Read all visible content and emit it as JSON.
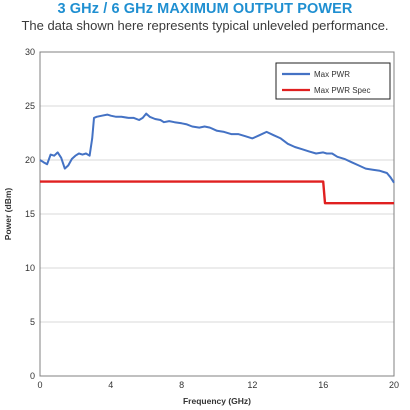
{
  "header": {
    "title": "3 GHz / 6 GHz MAXIMUM OUTPUT POWER",
    "subtitle": "The data shown here represents typical unleveled performance."
  },
  "chart_data": {
    "type": "line",
    "xlabel": "Frequency (GHz)",
    "ylabel": "Power (dBm)",
    "xlim": [
      0,
      20
    ],
    "ylim": [
      0,
      30
    ],
    "xticks": [
      0,
      4,
      8,
      12,
      16,
      20
    ],
    "yticks": [
      0,
      5,
      10,
      15,
      20,
      25,
      30
    ],
    "grid": "horizontal",
    "legend_position": "top-right",
    "series": [
      {
        "name": "Max PWR",
        "color": "#4472c4",
        "x": [
          0,
          0.2,
          0.4,
          0.6,
          0.8,
          1.0,
          1.2,
          1.4,
          1.6,
          1.8,
          2.0,
          2.2,
          2.4,
          2.6,
          2.8,
          2.95,
          3.05,
          3.2,
          3.5,
          3.8,
          4.0,
          4.3,
          4.6,
          5.0,
          5.3,
          5.6,
          5.8,
          6.0,
          6.2,
          6.5,
          6.8,
          7.0,
          7.3,
          7.6,
          8.0,
          8.3,
          8.6,
          9.0,
          9.3,
          9.6,
          10.0,
          10.4,
          10.8,
          11.2,
          11.6,
          12.0,
          12.4,
          12.8,
          13.2,
          13.6,
          14.0,
          14.4,
          14.8,
          15.2,
          15.6,
          16.0,
          16.2,
          16.5,
          16.8,
          17.2,
          17.6,
          18.0,
          18.4,
          18.8,
          19.2,
          19.6,
          19.8,
          20.0
        ],
        "values": [
          20.0,
          19.8,
          19.6,
          20.5,
          20.4,
          20.7,
          20.2,
          19.2,
          19.5,
          20.1,
          20.4,
          20.6,
          20.5,
          20.6,
          20.4,
          22.0,
          23.9,
          24.0,
          24.1,
          24.2,
          24.1,
          24.0,
          24.0,
          23.9,
          23.9,
          23.7,
          23.9,
          24.3,
          24.0,
          23.8,
          23.7,
          23.5,
          23.6,
          23.5,
          23.4,
          23.3,
          23.1,
          23.0,
          23.1,
          23.0,
          22.7,
          22.6,
          22.4,
          22.4,
          22.2,
          22.0,
          22.3,
          22.6,
          22.3,
          22.0,
          21.5,
          21.2,
          21.0,
          20.8,
          20.6,
          20.7,
          20.6,
          20.6,
          20.3,
          20.1,
          19.8,
          19.5,
          19.2,
          19.1,
          19.0,
          18.8,
          18.4,
          17.9
        ]
      },
      {
        "name": "Max PWR Spec",
        "color": "#e02020",
        "x": [
          0,
          16,
          16.1,
          20
        ],
        "values": [
          18,
          18,
          16,
          16
        ]
      }
    ]
  }
}
